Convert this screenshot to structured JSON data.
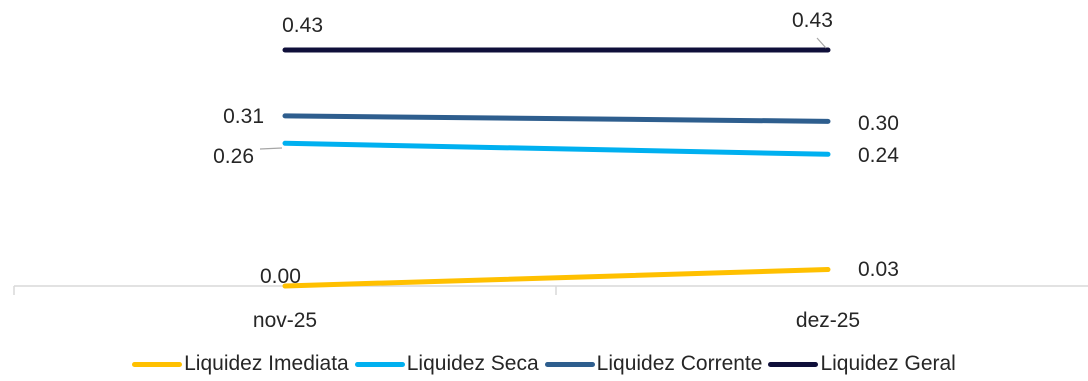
{
  "chart_data": {
    "type": "line",
    "title": "",
    "xlabel": "",
    "ylabel": "",
    "categories": [
      "nov-25",
      "dez-25"
    ],
    "ylim": [
      0,
      0.45
    ],
    "grid": false,
    "legend_position": "bottom",
    "series": [
      {
        "name": "Liquidez Imediata",
        "values": [
          0.0,
          0.03
        ],
        "labels": [
          "0.00",
          "0.03"
        ],
        "color": "#FFC000"
      },
      {
        "name": "Liquidez Seca",
        "values": [
          0.26,
          0.24
        ],
        "labels": [
          "0.26",
          "0.24"
        ],
        "color": "#00B0F0"
      },
      {
        "name": "Liquidez Corrente",
        "values": [
          0.31,
          0.3
        ],
        "labels": [
          "0.31",
          "0.30"
        ],
        "color": "#2E5E8E"
      },
      {
        "name": "Liquidez Geral",
        "values": [
          0.43,
          0.43
        ],
        "labels": [
          "0.43",
          "0.43"
        ],
        "color": "#0F0F3A"
      }
    ]
  }
}
